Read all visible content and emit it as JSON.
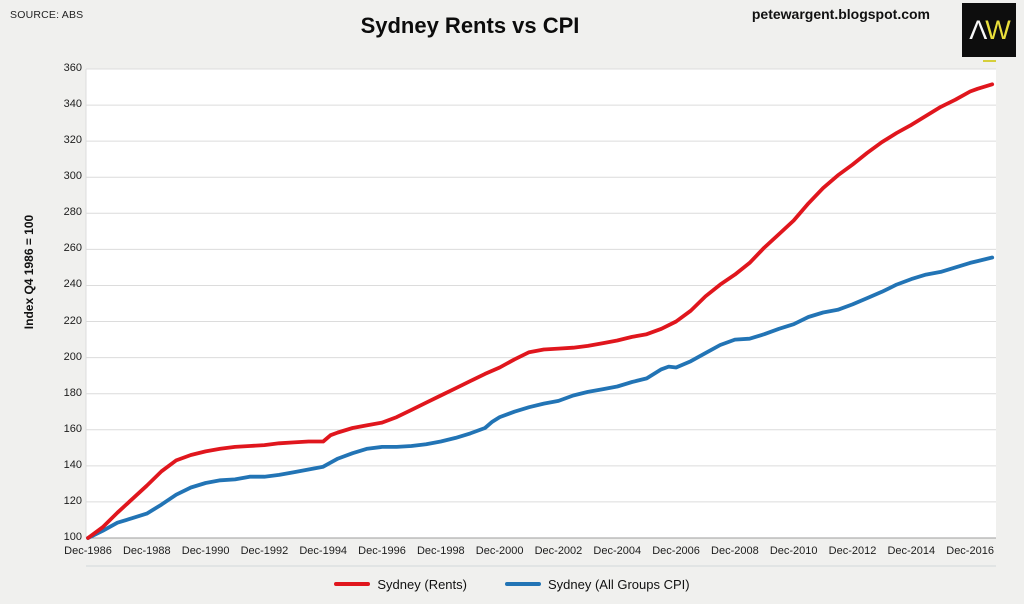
{
  "header": {
    "source": "SOURCE: ABS",
    "title": "Sydney Rents vs CPI",
    "url": "petewargent.blogspot.com",
    "logo": {
      "part1": "Λ",
      "part2": "W"
    }
  },
  "colors": {
    "rents_line": "#e0161d",
    "cpi_line": "#2274b5",
    "gridline": "#dcdcdc",
    "axis_line": "#9c9c9c",
    "separator": "#d2d7db",
    "logo_bg": "#0d0d0d",
    "logo_yellow": "#e9df3b",
    "page_bg": "#f0f0ee",
    "plot_bg": "#ffffff"
  },
  "chart_data": {
    "type": "line",
    "title": "Sydney Rents vs CPI",
    "ylabel": "Index Q4 1986 = 100",
    "xlabel": "",
    "grid": true,
    "legend_position": "bottom",
    "ylim": [
      100,
      360
    ],
    "xlim": [
      1986.92,
      2017.8
    ],
    "y_ticks": [
      100,
      120,
      140,
      160,
      180,
      200,
      220,
      240,
      260,
      280,
      300,
      320,
      340,
      360
    ],
    "x_tick_labels": [
      "Dec-1986",
      "Dec-1988",
      "Dec-1990",
      "Dec-1992",
      "Dec-1994",
      "Dec-1996",
      "Dec-1998",
      "Dec-2000",
      "Dec-2002",
      "Dec-2004",
      "Dec-2006",
      "Dec-2008",
      "Dec-2010",
      "Dec-2012",
      "Dec-2014",
      "Dec-2016"
    ],
    "x_tick_years": [
      1986.92,
      1988.92,
      1990.92,
      1992.92,
      1994.92,
      1996.92,
      1998.92,
      2000.92,
      2002.92,
      2004.92,
      2006.92,
      2008.92,
      2010.92,
      2012.92,
      2014.92,
      2016.92
    ],
    "series": [
      {
        "name": "Sydney (Rents)",
        "id": "rents",
        "color": "#e0161d",
        "data": [
          [
            1986.92,
            100
          ],
          [
            1987.42,
            106
          ],
          [
            1987.92,
            114
          ],
          [
            1988.42,
            121.5
          ],
          [
            1988.92,
            129
          ],
          [
            1989.42,
            137
          ],
          [
            1989.92,
            143
          ],
          [
            1990.42,
            146
          ],
          [
            1990.92,
            148
          ],
          [
            1991.42,
            149.5
          ],
          [
            1991.92,
            150.5
          ],
          [
            1992.42,
            151
          ],
          [
            1992.92,
            151.5
          ],
          [
            1993.42,
            152.5
          ],
          [
            1993.92,
            153
          ],
          [
            1994.42,
            153.5
          ],
          [
            1994.92,
            153.5
          ],
          [
            1995.17,
            157
          ],
          [
            1995.42,
            158.5
          ],
          [
            1995.92,
            161
          ],
          [
            1996.42,
            162.5
          ],
          [
            1996.92,
            164
          ],
          [
            1997.42,
            167
          ],
          [
            1997.92,
            171
          ],
          [
            1998.42,
            175
          ],
          [
            1998.92,
            179
          ],
          [
            1999.42,
            183
          ],
          [
            1999.92,
            187
          ],
          [
            2000.42,
            191
          ],
          [
            2000.92,
            194.5
          ],
          [
            2001.42,
            199
          ],
          [
            2001.92,
            203
          ],
          [
            2002.42,
            204.5
          ],
          [
            2002.92,
            205
          ],
          [
            2003.42,
            205.5
          ],
          [
            2003.92,
            206.5
          ],
          [
            2004.42,
            208
          ],
          [
            2004.92,
            209.5
          ],
          [
            2005.42,
            211.5
          ],
          [
            2005.92,
            213
          ],
          [
            2006.42,
            216
          ],
          [
            2006.92,
            220
          ],
          [
            2007.42,
            226
          ],
          [
            2007.92,
            234
          ],
          [
            2008.42,
            240.5
          ],
          [
            2008.92,
            246
          ],
          [
            2009.42,
            252.5
          ],
          [
            2009.92,
            261
          ],
          [
            2010.42,
            268.5
          ],
          [
            2010.92,
            276
          ],
          [
            2011.42,
            285.5
          ],
          [
            2011.92,
            294
          ],
          [
            2012.42,
            301
          ],
          [
            2012.92,
            307
          ],
          [
            2013.42,
            313.5
          ],
          [
            2013.92,
            319.5
          ],
          [
            2014.42,
            324.5
          ],
          [
            2014.92,
            329
          ],
          [
            2015.42,
            334
          ],
          [
            2015.92,
            339
          ],
          [
            2016.42,
            343
          ],
          [
            2016.92,
            347.5
          ],
          [
            2017.17,
            349
          ],
          [
            2017.67,
            351.5
          ]
        ]
      },
      {
        "name": "Sydney (All Groups CPI)",
        "id": "cpi",
        "color": "#2274b5",
        "data": [
          [
            1986.92,
            100
          ],
          [
            1987.42,
            104
          ],
          [
            1987.92,
            108.5
          ],
          [
            1988.42,
            111
          ],
          [
            1988.92,
            113.5
          ],
          [
            1989.42,
            118.5
          ],
          [
            1989.92,
            124
          ],
          [
            1990.42,
            128
          ],
          [
            1990.92,
            130.5
          ],
          [
            1991.42,
            132
          ],
          [
            1991.92,
            132.5
          ],
          [
            1992.42,
            134
          ],
          [
            1992.92,
            134
          ],
          [
            1993.42,
            135
          ],
          [
            1993.92,
            136.5
          ],
          [
            1994.42,
            138
          ],
          [
            1994.92,
            139.5
          ],
          [
            1995.42,
            144
          ],
          [
            1995.92,
            147
          ],
          [
            1996.42,
            149.5
          ],
          [
            1996.92,
            150.5
          ],
          [
            1997.42,
            150.5
          ],
          [
            1997.92,
            151
          ],
          [
            1998.42,
            152
          ],
          [
            1998.92,
            153.5
          ],
          [
            1999.42,
            155.5
          ],
          [
            1999.92,
            158
          ],
          [
            2000.42,
            161
          ],
          [
            2000.67,
            164.5
          ],
          [
            2000.92,
            167
          ],
          [
            2001.42,
            170
          ],
          [
            2001.92,
            172.5
          ],
          [
            2002.42,
            174.5
          ],
          [
            2002.92,
            176
          ],
          [
            2003.42,
            179
          ],
          [
            2003.92,
            181
          ],
          [
            2004.42,
            182.5
          ],
          [
            2004.92,
            184
          ],
          [
            2005.42,
            186.5
          ],
          [
            2005.92,
            188.5
          ],
          [
            2006.42,
            193.5
          ],
          [
            2006.67,
            195
          ],
          [
            2006.92,
            194.5
          ],
          [
            2007.42,
            198
          ],
          [
            2007.92,
            202.5
          ],
          [
            2008.42,
            207
          ],
          [
            2008.92,
            210
          ],
          [
            2009.42,
            210.5
          ],
          [
            2009.92,
            213
          ],
          [
            2010.42,
            216
          ],
          [
            2010.92,
            218.5
          ],
          [
            2011.42,
            222.5
          ],
          [
            2011.92,
            225
          ],
          [
            2012.42,
            226.5
          ],
          [
            2012.92,
            229.5
          ],
          [
            2013.42,
            233
          ],
          [
            2013.92,
            236.5
          ],
          [
            2014.42,
            240.5
          ],
          [
            2014.92,
            243.5
          ],
          [
            2015.42,
            246
          ],
          [
            2015.92,
            247.5
          ],
          [
            2016.42,
            250
          ],
          [
            2016.92,
            252.5
          ],
          [
            2017.17,
            253.5
          ],
          [
            2017.67,
            255.5
          ]
        ]
      }
    ]
  }
}
